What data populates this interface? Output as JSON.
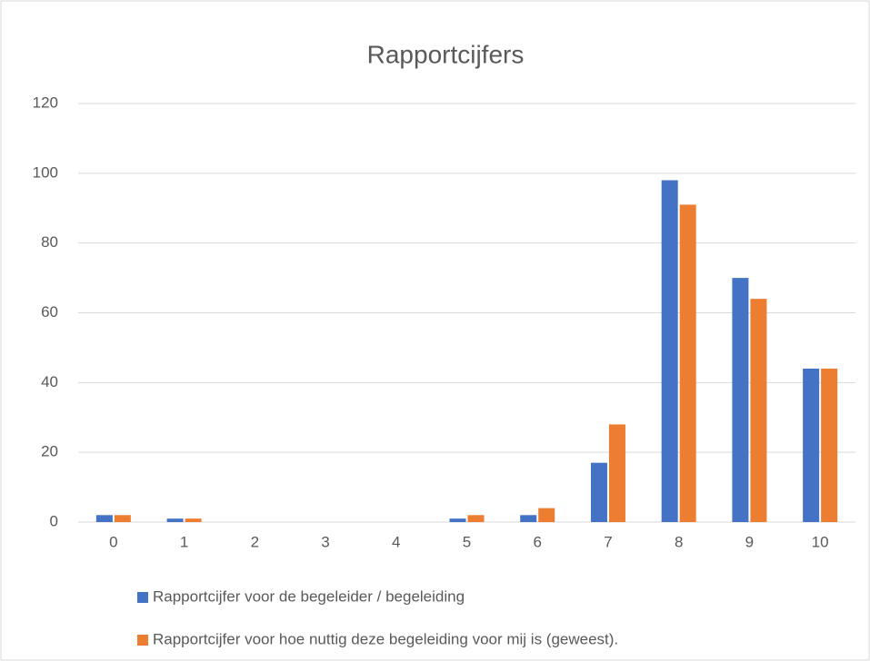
{
  "chart_data": {
    "type": "bar",
    "title": "Rapportcijfers",
    "categories": [
      "0",
      "1",
      "2",
      "3",
      "4",
      "5",
      "6",
      "7",
      "8",
      "9",
      "10"
    ],
    "series": [
      {
        "name": "Rapportcijfer voor de begeleider / begeleiding",
        "color": "#4472c4",
        "values": [
          2,
          1,
          0,
          0,
          0,
          1,
          2,
          17,
          98,
          70,
          44
        ]
      },
      {
        "name": "Rapportcijfer voor hoe nuttig deze begeleiding voor mij is (geweest).",
        "color": "#ed7d31",
        "values": [
          2,
          1,
          0,
          0,
          0,
          2,
          4,
          28,
          91,
          64,
          44
        ]
      }
    ],
    "ylim": [
      0,
      120
    ],
    "yticks": [
      0,
      20,
      40,
      60,
      80,
      100,
      120
    ],
    "grid": true,
    "legend": "bottom"
  }
}
